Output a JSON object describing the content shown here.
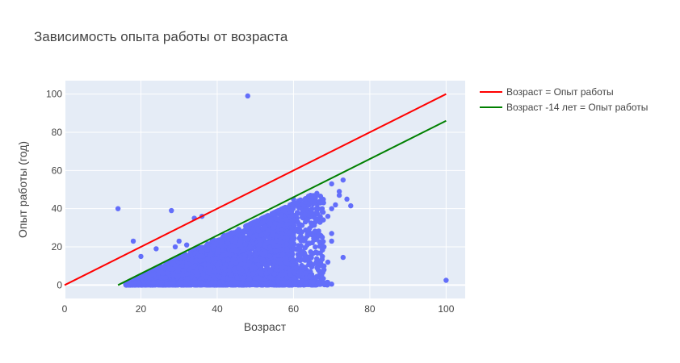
{
  "chart_data": {
    "type": "scatter",
    "title": "Зависимость опыта работы от возраста",
    "xlabel": "Возраст",
    "ylabel": "Опыт работы (год)",
    "xlim": [
      0,
      105
    ],
    "ylim": [
      -7,
      107
    ],
    "x_ticks": [
      0,
      20,
      40,
      60,
      80,
      100
    ],
    "y_ticks": [
      0,
      20,
      40,
      60,
      80,
      100
    ],
    "grid": true,
    "legend_position": "top-right outside",
    "colors": {
      "scatter": "#636efa",
      "plot_bg": "#e5ecf6",
      "grid": "#ffffff",
      "line1": "#ff0000",
      "line2": "#008000"
    },
    "series": [
      {
        "type": "line",
        "name": "Возраст = Опыт работы",
        "color": "#ff0000",
        "x": [
          0,
          100
        ],
        "y": [
          0,
          100
        ]
      },
      {
        "type": "line",
        "name": "Возраст -14 лет = Опыт работы",
        "color": "#008000",
        "x": [
          14,
          100
        ],
        "y": [
          0,
          86
        ]
      },
      {
        "type": "scatter",
        "color": "#636efa",
        "dense_cloud": {
          "x_range": [
            15,
            70
          ],
          "description": "dense point cloud of employees between ages ~15 and ~70"
        },
        "points": [
          [
            48,
            99
          ],
          [
            14,
            40
          ],
          [
            28,
            39
          ],
          [
            34,
            35
          ],
          [
            36,
            36
          ],
          [
            18,
            23
          ],
          [
            20,
            15
          ],
          [
            24,
            19
          ],
          [
            100,
            2.5
          ],
          [
            70,
            0.5
          ],
          [
            73,
            14.5
          ],
          [
            74,
            45
          ],
          [
            75,
            41.5
          ],
          [
            73,
            55
          ],
          [
            70,
            53
          ],
          [
            72,
            49
          ],
          [
            72,
            47
          ],
          [
            69,
            36
          ],
          [
            70,
            40
          ],
          [
            71,
            42
          ],
          [
            70,
            27
          ],
          [
            70,
            23
          ],
          [
            68,
            20
          ],
          [
            69,
            12
          ],
          [
            68,
            10
          ],
          [
            68,
            8
          ],
          [
            66,
            4
          ],
          [
            62,
            2
          ],
          [
            56,
            2
          ],
          [
            54,
            4
          ],
          [
            60,
            24
          ],
          [
            63,
            37
          ],
          [
            66,
            40
          ],
          [
            67,
            33
          ],
          [
            65,
            46
          ],
          [
            63,
            45
          ],
          [
            66,
            47
          ],
          [
            60,
            45
          ],
          [
            30,
            23
          ],
          [
            29,
            20
          ],
          [
            32,
            21
          ],
          [
            44,
            18
          ],
          [
            46,
            13
          ],
          [
            50,
            9
          ],
          [
            55,
            6
          ],
          [
            58,
            14
          ],
          [
            62,
            16
          ],
          [
            64,
            28
          ],
          [
            67,
            43
          ],
          [
            61,
            38
          ]
        ]
      }
    ]
  }
}
